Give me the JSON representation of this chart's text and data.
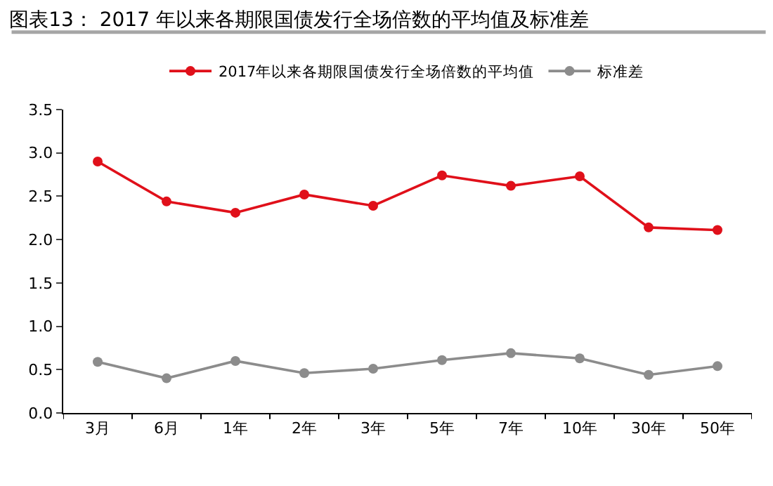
{
  "chart_data": {
    "type": "line",
    "title": "图表13： 2017 年以来各期限国债发行全场倍数的平均值及标准差",
    "categories": [
      "3月",
      "6月",
      "1年",
      "2年",
      "3年",
      "5年",
      "7年",
      "10年",
      "30年",
      "50年"
    ],
    "series": [
      {
        "name": "2017年以来各期限国债发行全场倍数的平均值",
        "color": "#e0101a",
        "values": [
          2.9,
          2.44,
          2.31,
          2.52,
          2.39,
          2.74,
          2.62,
          2.73,
          2.14,
          2.11
        ]
      },
      {
        "name": "标准差",
        "color": "#8c8c8c",
        "values": [
          0.59,
          0.4,
          0.6,
          0.46,
          0.51,
          0.61,
          0.69,
          0.63,
          0.44,
          0.54
        ]
      }
    ],
    "ylim": [
      0,
      3.5
    ],
    "yticks": [
      {
        "value": 0,
        "label": "0.0"
      },
      0.5,
      {
        "value": 1,
        "label": "1.0"
      },
      1.5,
      {
        "value": 2,
        "label": "2.0"
      },
      2.5,
      {
        "value": 3,
        "label": "3.0"
      },
      3.5
    ],
    "grid": false,
    "legend": "top",
    "marker": "circle",
    "line_style": "solid"
  }
}
